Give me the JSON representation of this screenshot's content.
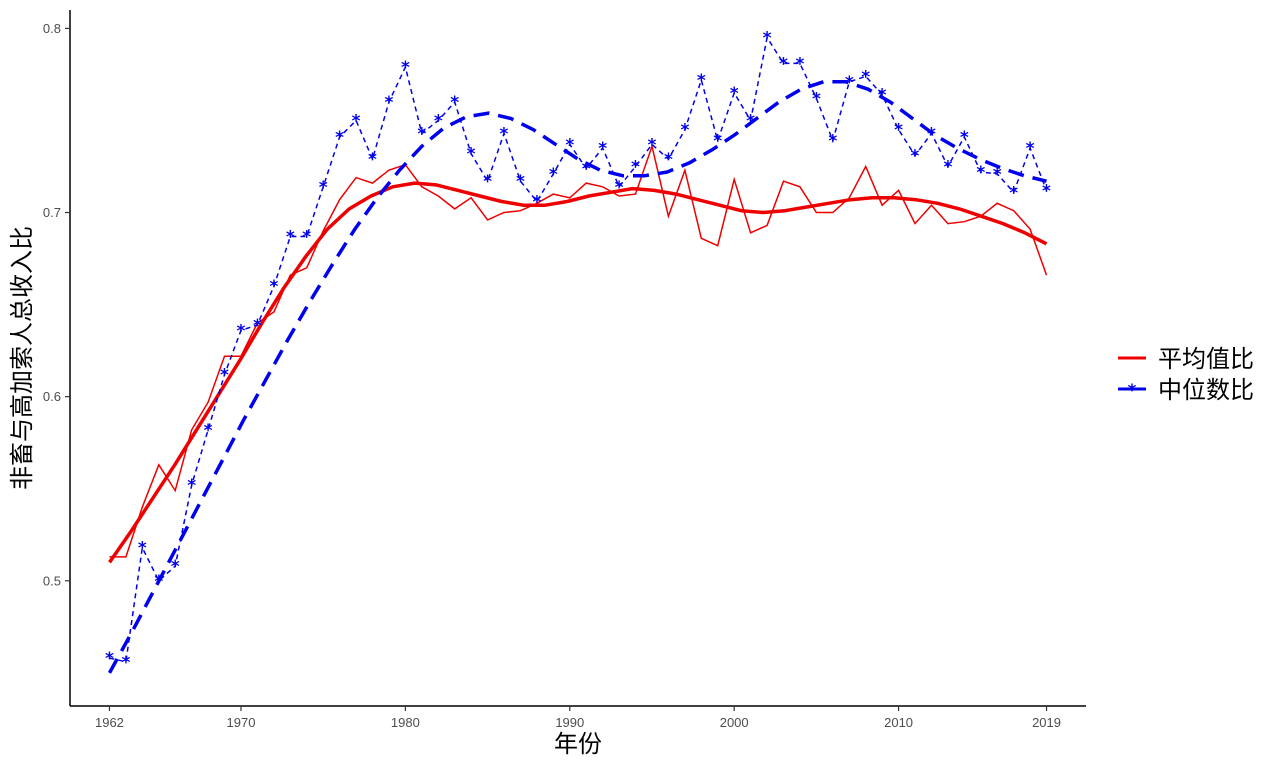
{
  "chart_data": {
    "type": "line",
    "xlabel": "年份",
    "ylabel": "非畜与高加索人总收入比",
    "x_ticks": [
      1962,
      1970,
      1980,
      1990,
      2000,
      2010,
      2019
    ],
    "y_ticks": [
      "0.5",
      "0.6",
      "0.7",
      "0.8"
    ],
    "xlim": [
      1959.6,
      2021.4
    ],
    "ylim": [
      0.432,
      0.81
    ],
    "grid": false,
    "legend_position": "right",
    "x": [
      1962,
      1963,
      1964,
      1965,
      1966,
      1967,
      1968,
      1969,
      1970,
      1971,
      1972,
      1973,
      1974,
      1975,
      1976,
      1977,
      1978,
      1979,
      1980,
      1981,
      1982,
      1983,
      1984,
      1985,
      1986,
      1987,
      1988,
      1989,
      1990,
      1991,
      1992,
      1993,
      1994,
      1995,
      1996,
      1997,
      1998,
      1999,
      2000,
      2001,
      2002,
      2003,
      2004,
      2005,
      2006,
      2007,
      2008,
      2009,
      2010,
      2011,
      2012,
      2013,
      2014,
      2015,
      2016,
      2017,
      2018,
      2019
    ],
    "series": [
      {
        "name": "平均值比",
        "color": "#ee0000",
        "values": [
          0.513,
          0.513,
          0.54,
          0.563,
          0.549,
          0.582,
          0.597,
          0.622,
          0.622,
          0.64,
          0.646,
          0.666,
          0.67,
          0.69,
          0.707,
          0.719,
          0.716,
          0.723,
          0.726,
          0.714,
          0.709,
          0.702,
          0.708,
          0.696,
          0.7,
          0.701,
          0.705,
          0.71,
          0.708,
          0.716,
          0.714,
          0.709,
          0.71,
          0.736,
          0.698,
          0.723,
          0.686,
          0.682,
          0.718,
          0.689,
          0.693,
          0.717,
          0.714,
          0.7,
          0.7,
          0.708,
          0.725,
          0.704,
          0.712,
          0.694,
          0.704,
          0.694,
          0.695,
          0.698,
          0.705,
          0.701,
          0.691,
          0.666
        ],
        "smooth_values": [
          0.51,
          0.527,
          0.545,
          0.563,
          0.582,
          0.601,
          0.62,
          0.64,
          0.659,
          0.676,
          0.691,
          0.702,
          0.709,
          0.714,
          0.716,
          0.715,
          0.712,
          0.709,
          0.706,
          0.704,
          0.704,
          0.706,
          0.709,
          0.711,
          0.713,
          0.712,
          0.71,
          0.707,
          0.704,
          0.701,
          0.7,
          0.701,
          0.703,
          0.705,
          0.707,
          0.708,
          0.708,
          0.707,
          0.705,
          0.702,
          0.698,
          0.694,
          0.689,
          0.683
        ]
      },
      {
        "name": "中位数比",
        "color": "#0000ee",
        "marker": "star",
        "values": [
          0.458,
          0.456,
          0.518,
          0.5,
          0.508,
          0.552,
          0.582,
          0.612,
          0.636,
          0.639,
          0.66,
          0.687,
          0.687,
          0.714,
          0.741,
          0.75,
          0.729,
          0.76,
          0.779,
          0.743,
          0.75,
          0.76,
          0.732,
          0.717,
          0.743,
          0.717,
          0.706,
          0.721,
          0.737,
          0.724,
          0.735,
          0.714,
          0.725,
          0.737,
          0.729,
          0.745,
          0.772,
          0.739,
          0.765,
          0.75,
          0.795,
          0.781,
          0.781,
          0.762,
          0.739,
          0.771,
          0.774,
          0.764,
          0.745,
          0.731,
          0.743,
          0.725,
          0.741,
          0.722,
          0.721,
          0.711,
          0.735,
          0.712
        ],
        "smooth_values": [
          0.45,
          0.472,
          0.495,
          0.518,
          0.541,
          0.564,
          0.587,
          0.609,
          0.631,
          0.652,
          0.672,
          0.691,
          0.708,
          0.723,
          0.736,
          0.746,
          0.752,
          0.754,
          0.751,
          0.745,
          0.737,
          0.729,
          0.723,
          0.72,
          0.72,
          0.722,
          0.727,
          0.734,
          0.742,
          0.751,
          0.76,
          0.767,
          0.771,
          0.771,
          0.767,
          0.76,
          0.751,
          0.742,
          0.735,
          0.729,
          0.724,
          0.72,
          0.717
        ]
      }
    ]
  },
  "legend": {
    "items": [
      {
        "label": "平均值比",
        "color": "#ee0000"
      },
      {
        "label": "中位数比",
        "color": "#0000ee"
      }
    ]
  }
}
